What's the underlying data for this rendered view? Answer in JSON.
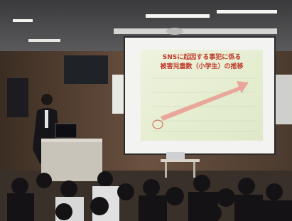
{
  "slide": {
    "title_lines": [
      "SNSに起因する事犯に係る",
      "被害児童数（小学生）の推移"
    ]
  }
}
